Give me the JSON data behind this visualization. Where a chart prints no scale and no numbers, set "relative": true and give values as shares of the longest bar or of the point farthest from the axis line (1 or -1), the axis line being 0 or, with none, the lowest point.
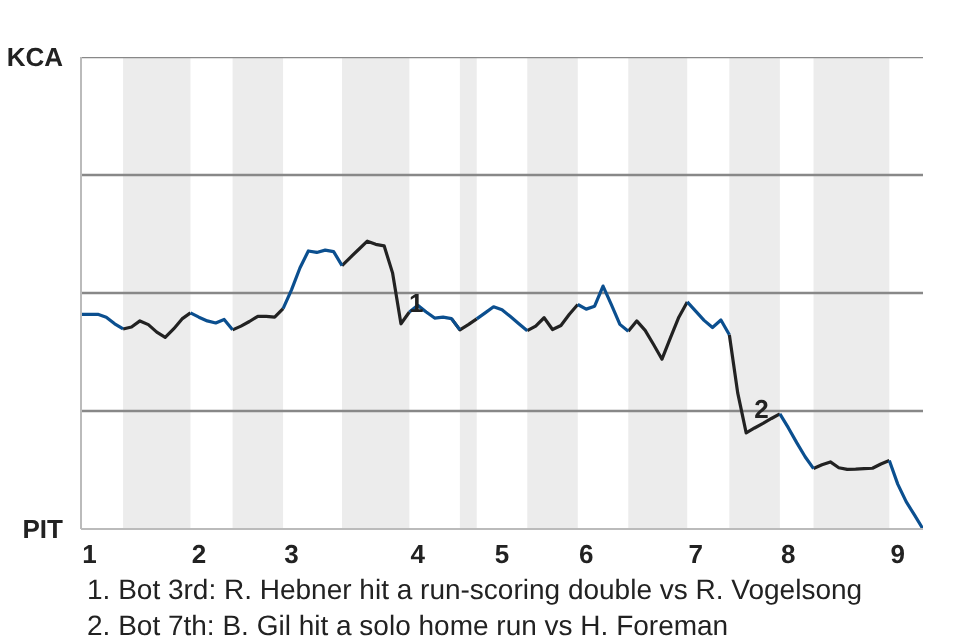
{
  "chart_data": {
    "type": "line",
    "relative": true,
    "categories": [
      null,
      "1",
      null,
      null,
      null,
      null,
      null,
      null,
      null,
      null,
      null,
      null,
      null,
      null,
      "2",
      null,
      null,
      null,
      null,
      null,
      null,
      null,
      null,
      null,
      null,
      "3",
      null,
      null,
      null,
      null,
      null,
      null,
      null,
      null,
      null,
      null,
      null,
      null,
      null,
      null,
      "4",
      null,
      null,
      null,
      null,
      null,
      null,
      null,
      null,
      null,
      "5",
      null,
      null,
      null,
      null,
      null,
      null,
      null,
      null,
      null,
      "6",
      null,
      null,
      null,
      null,
      null,
      null,
      null,
      null,
      null,
      null,
      null,
      null,
      "7",
      null,
      null,
      null,
      null,
      null,
      null,
      null,
      null,
      null,
      null,
      "8",
      null,
      null,
      null,
      null,
      null,
      null,
      null,
      null,
      null,
      null,
      null,
      null,
      "9",
      null,
      null,
      null
    ],
    "ref_lines": [
      {
        "axis": "y",
        "value": 0.41,
        "color": "#888888"
      },
      {
        "axis": "y",
        "value": 0.82,
        "color": "#888888"
      },
      {
        "axis": "y",
        "value": 1.23,
        "color": "#888888"
      },
      {
        "axis": "y",
        "value": 1.64,
        "color": "#888888"
      }
    ],
    "series": [
      {
        "color": "#0b4f8f",
        "values": [
          0.746,
          0.746,
          0.746,
          0.736,
          0.713,
          0.695,
          null,
          null,
          null,
          null,
          null,
          null,
          null,
          0.751,
          0.736,
          0.723,
          0.716,
          0.728,
          0.692,
          null,
          null,
          null,
          null,
          null,
          0.766,
          0.831,
          0.907,
          0.966,
          0.961,
          0.969,
          0.964,
          0.915,
          null,
          null,
          null,
          null,
          null,
          null,
          null,
          0.754,
          0.777,
          0.754,
          0.733,
          0.736,
          0.731,
          0.692,
          null,
          0.73,
          0.751,
          0.772,
          0.762,
          0.738,
          0.713,
          0.689,
          null,
          null,
          null,
          null,
          null,
          0.78,
          0.764,
          0.774,
          0.844,
          0.779,
          0.711,
          0.687,
          null,
          null,
          null,
          null,
          null,
          null,
          0.789,
          0.757,
          0.725,
          0.7,
          0.726,
          0.675,
          null,
          null,
          null,
          null,
          null,
          0.4,
          0.352,
          0.3,
          0.251,
          0.21,
          null,
          null,
          null,
          null,
          null,
          null,
          null,
          null,
          0.238,
          0.156,
          0.095,
          0.048,
          0
        ]
      },
      {
        "color": "#222222",
        "values": [
          null,
          null,
          null,
          null,
          null,
          0.695,
          0.702,
          0.723,
          0.71,
          0.684,
          0.666,
          0.695,
          0.73,
          0.751,
          null,
          null,
          null,
          null,
          0.692,
          0.705,
          0.721,
          0.739,
          0.739,
          0.736,
          0.766,
          null,
          null,
          null,
          null,
          null,
          null,
          0.915,
          0.944,
          0.972,
          1,
          0.989,
          0.984,
          0.89,
          0.713,
          0.754,
          null,
          null,
          null,
          null,
          0.731,
          0.692,
          0.71,
          0.73,
          null,
          null,
          null,
          null,
          null,
          0.689,
          0.705,
          0.734,
          0.693,
          0.707,
          0.746,
          0.78,
          null,
          null,
          null,
          null,
          null,
          0.687,
          0.723,
          0.69,
          0.641,
          0.59,
          0.664,
          0.736,
          0.789,
          null,
          null,
          null,
          null,
          0.675,
          0.472,
          0.334,
          0.351,
          0.367,
          0.384,
          0.4,
          null,
          null,
          null,
          0.21,
          0.223,
          0.233,
          0.213,
          0.207,
          0.208,
          0.21,
          0.211,
          0.226,
          0.238,
          null,
          null,
          null,
          null
        ]
      }
    ],
    "annotations": [
      "KCA",
      "PIT",
      {
        "text": "1",
        "y": 0.754
      },
      {
        "text": "2",
        "y": 0.384
      },
      "1. Bot 3rd: R. Hebner hit a run-scoring double vs R. Vogelsong",
      "2. Bot 7th: B. Gil hit a solo home run vs H. Foreman"
    ]
  }
}
